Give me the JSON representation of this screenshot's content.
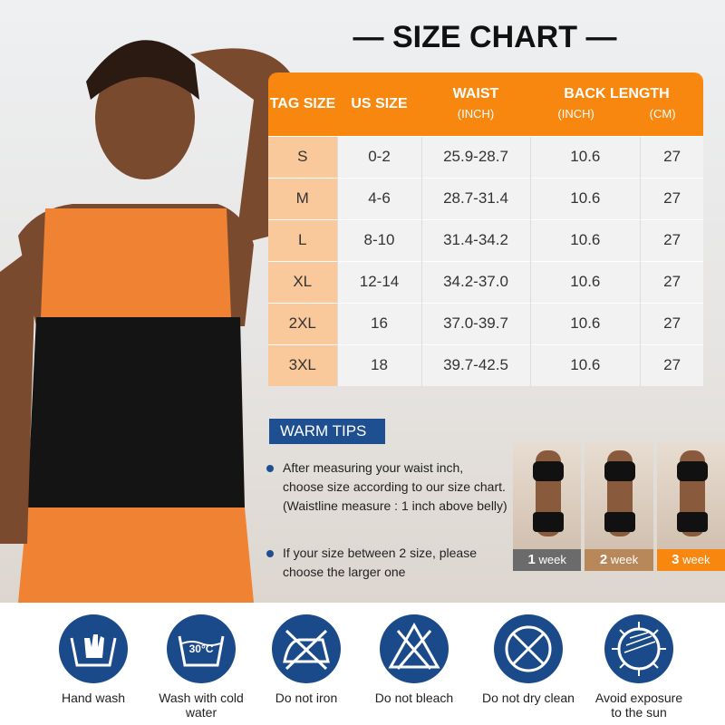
{
  "title": "SIZE CHART",
  "table": {
    "headers": {
      "tag": "TAG SIZE",
      "us": "US SIZE",
      "waist": "WAIST",
      "waist_unit": "(INCH)",
      "back": "BACK LENGTH",
      "back_inch": "(INCH)",
      "back_cm": "(CM)"
    },
    "rows": [
      {
        "tag": "S",
        "us": "0-2",
        "waist": "25.9-28.7",
        "inch": "10.6",
        "cm": "27"
      },
      {
        "tag": "M",
        "us": "4-6",
        "waist": "28.7-31.4",
        "inch": "10.6",
        "cm": "27"
      },
      {
        "tag": "L",
        "us": "8-10",
        "waist": "31.4-34.2",
        "inch": "10.6",
        "cm": "27"
      },
      {
        "tag": "XL",
        "us": "12-14",
        "waist": "34.2-37.0",
        "inch": "10.6",
        "cm": "27"
      },
      {
        "tag": "2XL",
        "us": "16",
        "waist": "37.0-39.7",
        "inch": "10.6",
        "cm": "27"
      },
      {
        "tag": "3XL",
        "us": "18",
        "waist": "39.7-42.5",
        "inch": "10.6",
        "cm": "27"
      }
    ]
  },
  "warm_tips": {
    "label": "WARM TIPS",
    "items": [
      "After measuring your waist inch, choose size according to our size chart. (Waistline measure : 1 inch above belly)",
      "If your size between 2 size, please choose the larger one"
    ]
  },
  "progress": [
    {
      "num": "1",
      "unit": "week",
      "color": "#6b6b6b"
    },
    {
      "num": "2",
      "unit": "week",
      "color": "#b8875a"
    },
    {
      "num": "3",
      "unit": "week",
      "color": "#f7870f"
    }
  ],
  "care": [
    {
      "icon": "hand-wash-icon",
      "label": "Hand wash"
    },
    {
      "icon": "cold-wash-icon",
      "label": "Wash with cold water",
      "temp": "30°C"
    },
    {
      "icon": "no-iron-icon",
      "label": "Do not iron"
    },
    {
      "icon": "no-bleach-icon",
      "label": "Do not bleach"
    },
    {
      "icon": "no-dry-clean-icon",
      "label": "Do not dry clean"
    },
    {
      "icon": "avoid-sun-icon",
      "label": "Avoid exposure to the sun"
    }
  ],
  "colors": {
    "orange": "#f7870f",
    "blue": "#1a4a8a"
  }
}
